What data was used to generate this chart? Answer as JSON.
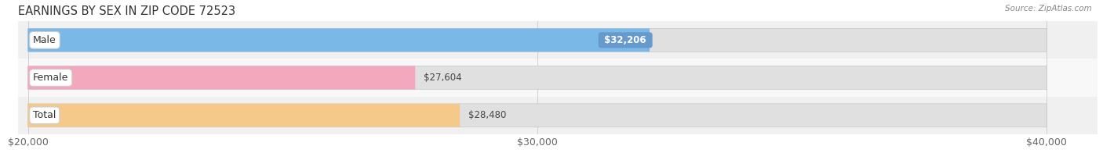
{
  "title": "EARNINGS BY SEX IN ZIP CODE 72523",
  "source": "Source: ZipAtlas.com",
  "categories": [
    "Male",
    "Female",
    "Total"
  ],
  "values": [
    32206,
    27604,
    28480
  ],
  "bar_colors": [
    "#7ab8e8",
    "#f4a8be",
    "#f5c98a"
  ],
  "value_label_bg": "#6699cc",
  "x_min": 20000,
  "x_max": 40000,
  "x_ticks": [
    20000,
    30000,
    40000
  ],
  "x_tick_labels": [
    "$20,000",
    "$30,000",
    "$40,000"
  ],
  "bar_height": 0.62,
  "bg_color": "#ffffff",
  "row_bg_even": "#f0f0f0",
  "row_bg_odd": "#fafafa",
  "bar_bg_color": "#e8e8e8",
  "title_fontsize": 10.5,
  "tick_fontsize": 9,
  "label_fontsize": 8.5,
  "category_fontsize": 9
}
